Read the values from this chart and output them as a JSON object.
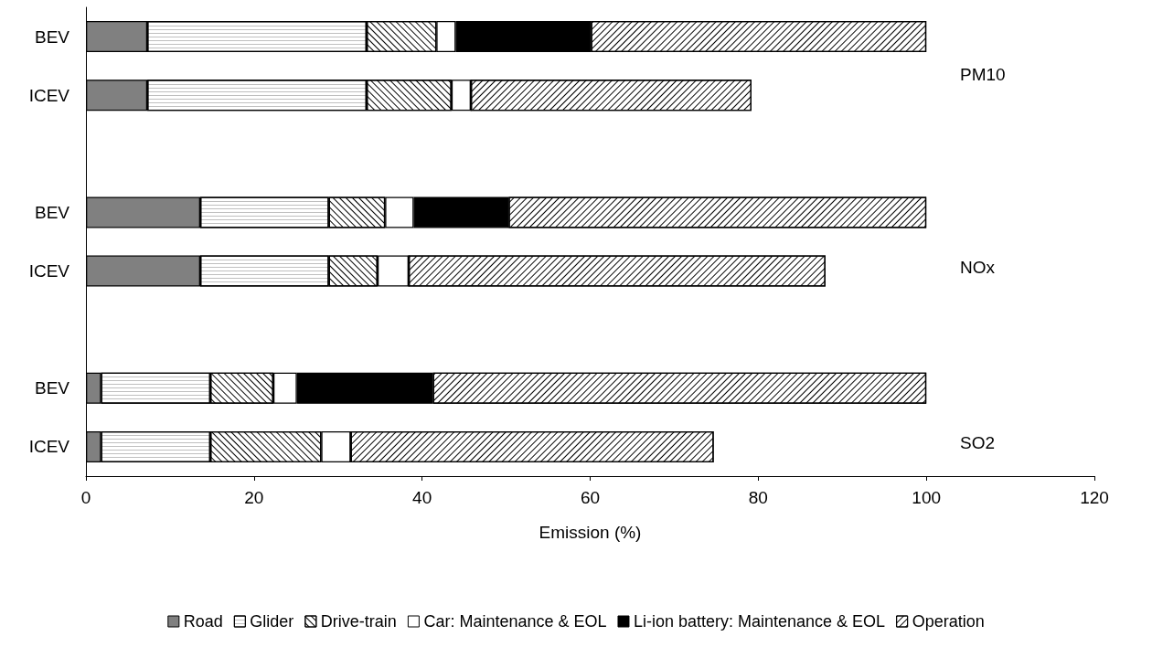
{
  "chart_data": {
    "type": "bar",
    "orientation": "horizontal",
    "stacked": true,
    "xlabel": "Emission (%)",
    "categories": [
      "BEV",
      "ICEV",
      null,
      "BEV",
      "ICEV",
      null,
      "BEV",
      "ICEV"
    ],
    "series": [
      {
        "name": "Road",
        "color": "#808080",
        "values": [
          7.3,
          7.3,
          null,
          13.6,
          13.6,
          null,
          1.8,
          1.8
        ]
      },
      {
        "name": "Glider",
        "color": "#ffffff",
        "values": [
          26.1,
          26.1,
          null,
          15.3,
          15.3,
          null,
          13.0,
          13.0
        ]
      },
      {
        "name": "Drive-train",
        "color": "#ffffff",
        "values": [
          8.3,
          10.1,
          null,
          6.7,
          5.8,
          null,
          7.5,
          13.2
        ]
      },
      {
        "name": "Car: Maintenance & EOL",
        "color": "#ffffff",
        "values": [
          2.3,
          2.3,
          null,
          3.4,
          3.7,
          null,
          2.8,
          3.5
        ]
      },
      {
        "name": "Li-ion battery: Maintenance & EOL",
        "color": "#000000",
        "values": [
          16.1,
          0,
          null,
          11.3,
          0,
          null,
          16.2,
          0
        ]
      },
      {
        "name": "Operation",
        "color": "#ffffff",
        "values": [
          39.9,
          33.4,
          null,
          49.7,
          49.6,
          null,
          58.7,
          43.2
        ]
      }
    ],
    "xlim": [
      0,
      120
    ],
    "xticks": [
      0,
      20,
      40,
      60,
      80,
      100,
      120
    ],
    "annotations": [
      "PM10",
      "NOx",
      "SO2"
    ],
    "grid": false,
    "legend": "bottom"
  }
}
